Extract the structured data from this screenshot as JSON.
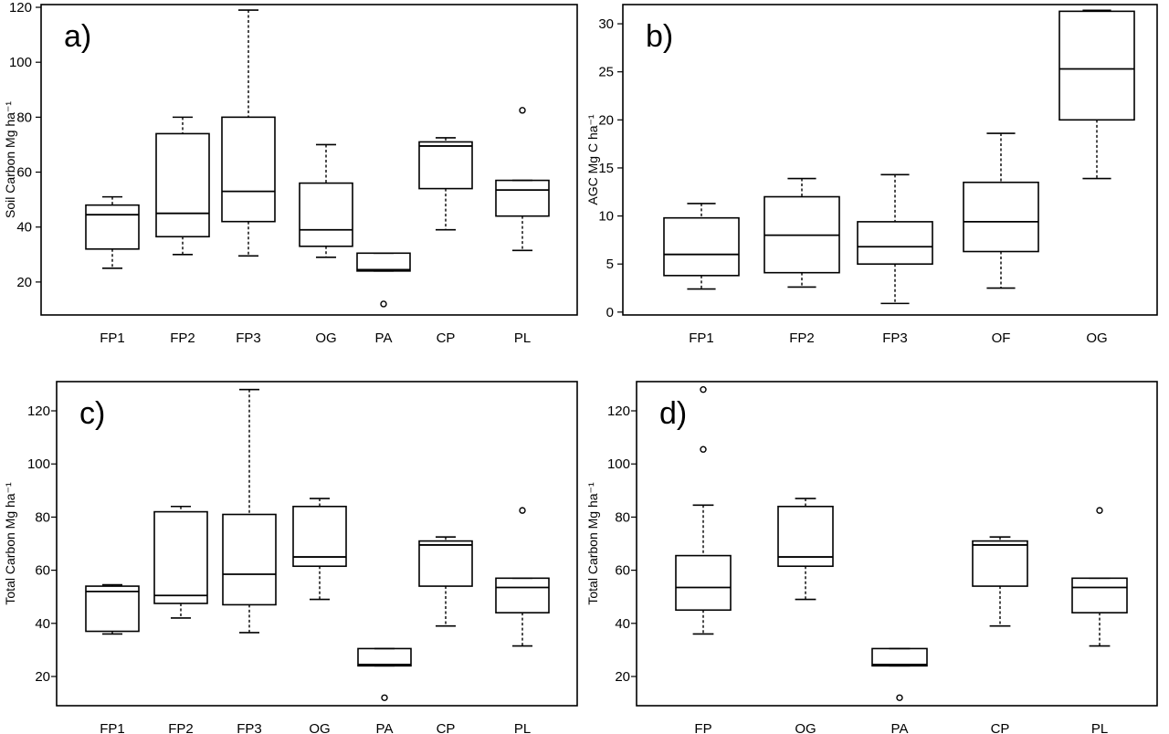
{
  "chart_data": [
    {
      "type": "box",
      "panel_label": "a)",
      "ylabel": "Soil Carbon Mg ha⁻¹",
      "yticks": [
        20,
        40,
        60,
        80,
        100,
        120
      ],
      "ylim": [
        8,
        121
      ],
      "categories": [
        "FP1",
        "FP2",
        "FP3",
        "OG",
        "PA",
        "CP",
        "PL"
      ],
      "boxes": [
        {
          "min": 25,
          "q1": 32,
          "median": 44.5,
          "q3": 48,
          "max": 51,
          "outliers": []
        },
        {
          "min": 30,
          "q1": 36.5,
          "median": 45,
          "q3": 74,
          "max": 80,
          "outliers": []
        },
        {
          "min": 29.5,
          "q1": 42,
          "median": 53,
          "q3": 80,
          "max": 119,
          "outliers": []
        },
        {
          "min": 29,
          "q1": 33,
          "median": 39,
          "q3": 56,
          "max": 70,
          "outliers": []
        },
        {
          "min": 24,
          "q1": 24,
          "median": 24.5,
          "q3": 30.5,
          "max": 30.5,
          "outliers": [
            12
          ]
        },
        {
          "min": 39,
          "q1": 54,
          "median": 69.5,
          "q3": 71,
          "max": 72.5,
          "outliers": []
        },
        {
          "min": 31.5,
          "q1": 44,
          "median": 53.5,
          "q3": 57,
          "max": 57,
          "outliers": [
            82.5
          ]
        }
      ]
    },
    {
      "type": "box",
      "panel_label": "b)",
      "ylabel": "AGC Mg C ha⁻¹",
      "yticks": [
        0,
        5,
        10,
        15,
        20,
        25,
        30
      ],
      "ylim": [
        -0.3,
        32
      ],
      "categories": [
        "FP1",
        "FP2",
        "FP3",
        "OF",
        "OG"
      ],
      "boxes": [
        {
          "min": 2.4,
          "q1": 3.8,
          "median": 6,
          "q3": 9.8,
          "max": 11.3,
          "outliers": []
        },
        {
          "min": 2.6,
          "q1": 4.1,
          "median": 8,
          "q3": 12,
          "max": 13.9,
          "outliers": []
        },
        {
          "min": 0.9,
          "q1": 5,
          "median": 6.8,
          "q3": 9.4,
          "max": 14.3,
          "outliers": []
        },
        {
          "min": 2.5,
          "q1": 6.3,
          "median": 9.4,
          "q3": 13.5,
          "max": 18.6,
          "outliers": []
        },
        {
          "min": 13.9,
          "q1": 20,
          "median": 25.3,
          "q3": 31.3,
          "max": 31.4,
          "outliers": []
        }
      ]
    },
    {
      "type": "box",
      "panel_label": "c)",
      "ylabel": "Total Carbon Mg ha⁻¹",
      "yticks": [
        20,
        40,
        60,
        80,
        100,
        120
      ],
      "ylim": [
        9,
        131
      ],
      "categories": [
        "FP1",
        "FP2",
        "FP3",
        "OG",
        "PA",
        "CP",
        "PL"
      ],
      "boxes": [
        {
          "min": 36,
          "q1": 37,
          "median": 52,
          "q3": 54,
          "max": 54.5,
          "outliers": []
        },
        {
          "min": 42,
          "q1": 47.5,
          "median": 50.5,
          "q3": 82,
          "max": 84,
          "outliers": []
        },
        {
          "min": 36.5,
          "q1": 47,
          "median": 58.5,
          "q3": 81,
          "max": 128,
          "outliers": []
        },
        {
          "min": 49,
          "q1": 61.5,
          "median": 65,
          "q3": 84,
          "max": 87,
          "outliers": []
        },
        {
          "min": 24,
          "q1": 24,
          "median": 24.5,
          "q3": 30.5,
          "max": 30.5,
          "outliers": [
            12
          ]
        },
        {
          "min": 39,
          "q1": 54,
          "median": 69.5,
          "q3": 71,
          "max": 72.5,
          "outliers": []
        },
        {
          "min": 31.5,
          "q1": 44,
          "median": 53.5,
          "q3": 57,
          "max": 57,
          "outliers": [
            82.5
          ]
        }
      ]
    },
    {
      "type": "box",
      "panel_label": "d)",
      "ylabel": "Total Carbon Mg ha⁻¹",
      "yticks": [
        20,
        40,
        60,
        80,
        100,
        120
      ],
      "ylim": [
        9,
        131
      ],
      "categories": [
        "FP",
        "OG",
        "PA",
        "CP",
        "PL"
      ],
      "boxes": [
        {
          "min": 36,
          "q1": 45,
          "median": 53.5,
          "q3": 65.5,
          "max": 84.5,
          "outliers": [
            105.5,
            128
          ]
        },
        {
          "min": 49,
          "q1": 61.5,
          "median": 65,
          "q3": 84,
          "max": 87,
          "outliers": []
        },
        {
          "min": 24,
          "q1": 24,
          "median": 24.5,
          "q3": 30.5,
          "max": 30.5,
          "outliers": [
            12
          ]
        },
        {
          "min": 39,
          "q1": 54,
          "median": 69.5,
          "q3": 71,
          "max": 72.5,
          "outliers": []
        },
        {
          "min": 31.5,
          "q1": 44,
          "median": 53.5,
          "q3": 57,
          "max": 57,
          "outliers": [
            82.5
          ]
        }
      ]
    }
  ]
}
